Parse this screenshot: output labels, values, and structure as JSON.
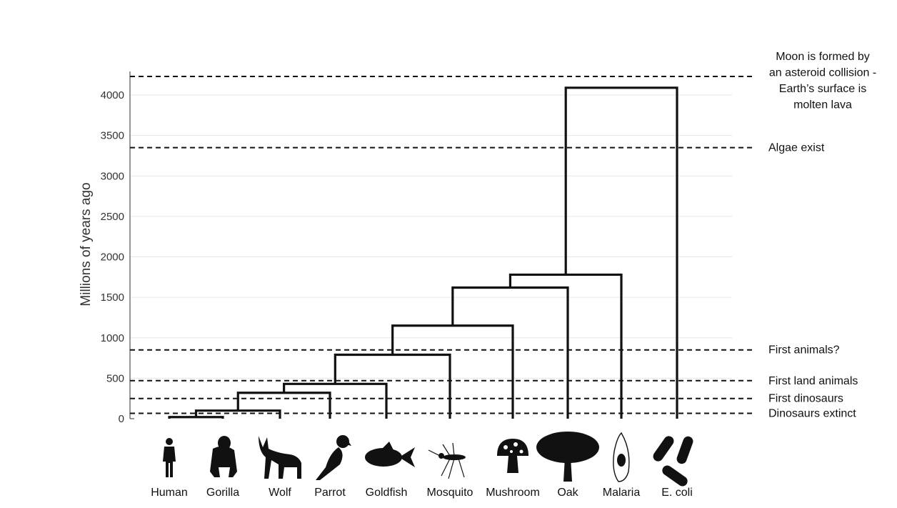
{
  "chart_data": {
    "type": "dendrogram",
    "ylabel": "Millions of years ago",
    "ylim": [
      0,
      4200
    ],
    "yticks": [
      0,
      500,
      1000,
      1500,
      2000,
      2500,
      3000,
      3500,
      4000
    ],
    "leaves": [
      "Human",
      "Gorilla",
      "Wolf",
      "Parrot",
      "Goldfish",
      "Mosquito",
      "Mushroom",
      "Oak",
      "Malaria",
      "E. coli"
    ],
    "merges": [
      {
        "left": 0,
        "right": 1,
        "height": 20
      },
      {
        "left": 10,
        "right": 2,
        "height": 100
      },
      {
        "left": 11,
        "right": 3,
        "height": 320
      },
      {
        "left": 12,
        "right": 4,
        "height": 430
      },
      {
        "left": 13,
        "right": 5,
        "height": 790
      },
      {
        "left": 14,
        "right": 6,
        "height": 1150
      },
      {
        "left": 15,
        "right": 7,
        "height": 1620
      },
      {
        "left": 16,
        "right": 8,
        "height": 1780
      },
      {
        "left": 17,
        "right": 9,
        "height": 4090
      }
    ],
    "events": [
      {
        "label_lines": [
          "Moon is formed by",
          "an asteroid collision -",
          "Earth’s surface is",
          "molten lava"
        ],
        "value": 4230
      },
      {
        "label_lines": [
          "Algae exist"
        ],
        "value": 3350
      },
      {
        "label_lines": [
          "First animals?"
        ],
        "value": 850
      },
      {
        "label_lines": [
          "First land animals"
        ],
        "value": 470
      },
      {
        "label_lines": [
          "First dinosaurs"
        ],
        "value": 250
      },
      {
        "label_lines": [
          "Dinosaurs extinct"
        ],
        "value": 66
      }
    ],
    "icons": [
      "human-icon",
      "gorilla-icon",
      "wolf-icon",
      "parrot-icon",
      "goldfish-icon",
      "mosquito-icon",
      "mushroom-icon",
      "oak-icon",
      "malaria-icon",
      "ecoli-icon"
    ]
  }
}
